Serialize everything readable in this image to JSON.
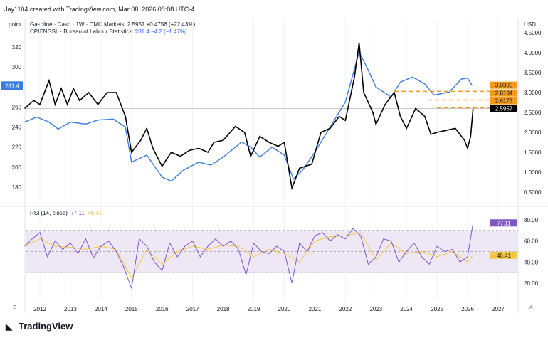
{
  "header": {
    "credit": "Jay1104 created with TradingView.com, Mar 08, 2026 08:08 UTC-4",
    "left_unit": "point",
    "right_unit": "USD",
    "series1_label": "Gasoline · Cash · 1W · CMC Markets",
    "series1_values": "2.5957  +0.4756 (+22.43%)",
    "series2_label": "CPIENGSL · Bureau of Labour Statistics",
    "series2_values": "281.4  −4.2 (−1.47%)",
    "rsi_label": "RSI (14, close)",
    "rsi_value": "77.11",
    "rsi_ma_value": "46.41"
  },
  "footer": {
    "brand": "TradingView",
    "z_button": "Z",
    "a_button": "A"
  },
  "colors": {
    "gasoline": "#000000",
    "cpi": "#3a7bdc",
    "rsi": "#7e57c2",
    "rsi_ma": "#f5c842",
    "levels": "#f59b1c",
    "rsi_band": "#ede7f6"
  },
  "chart_data": [
    {
      "type": "line",
      "title": "",
      "x_ticks": [
        "2012",
        "2013",
        "2014",
        "2015",
        "2016",
        "2017",
        "2018",
        "2019",
        "2020",
        "2021",
        "2022",
        "2023",
        "2024",
        "2025",
        "2026",
        "2027"
      ],
      "left_axis": {
        "ticks": [
          "180",
          "200",
          "220",
          "240",
          "260",
          "300",
          "320"
        ],
        "ylim": [
          170,
          330
        ]
      },
      "right_axis": {
        "ticks": [
          "0.5000",
          "1.0000",
          "1.5000",
          "2.0000",
          "2.5000",
          "3.0000",
          "3.5000",
          "4.0000",
          "4.5000"
        ],
        "ylim": [
          0.3,
          4.7
        ]
      },
      "series": [
        {
          "name": "Gasoline · Cash · 1W · CMC Markets",
          "axis": "right",
          "x": [
            2011.5,
            2011.8,
            2012.0,
            2012.3,
            2012.5,
            2012.7,
            2012.9,
            2013.1,
            2013.3,
            2013.6,
            2013.9,
            2014.2,
            2014.5,
            2014.8,
            2015.0,
            2015.3,
            2015.5,
            2015.7,
            2016.0,
            2016.3,
            2016.6,
            2016.9,
            2017.2,
            2017.5,
            2017.7,
            2018.0,
            2018.4,
            2018.7,
            2018.9,
            2019.2,
            2019.5,
            2019.8,
            2020.0,
            2020.25,
            2020.5,
            2020.9,
            2021.2,
            2021.5,
            2021.8,
            2022.0,
            2022.3,
            2022.45,
            2022.6,
            2022.9,
            2023.0,
            2023.3,
            2023.6,
            2023.8,
            2024.0,
            2024.3,
            2024.6,
            2024.8,
            2025.0,
            2025.3,
            2025.6,
            2025.9,
            2026.0,
            2026.1,
            2026.18
          ],
          "y": [
            2.6,
            2.8,
            2.7,
            3.3,
            2.7,
            3.1,
            2.7,
            3.1,
            2.8,
            3.0,
            2.7,
            3.0,
            3.0,
            2.4,
            1.5,
            1.8,
            2.1,
            1.6,
            1.15,
            1.5,
            1.4,
            1.55,
            1.6,
            1.5,
            1.75,
            1.8,
            2.15,
            2.0,
            1.4,
            1.9,
            1.75,
            1.65,
            1.75,
            0.6,
            1.1,
            1.2,
            2.0,
            2.1,
            2.4,
            2.3,
            3.4,
            4.25,
            3.0,
            2.5,
            2.2,
            2.7,
            3.0,
            2.4,
            2.1,
            2.6,
            2.4,
            1.95,
            2.0,
            2.05,
            2.1,
            1.8,
            1.6,
            1.9,
            2.5957
          ]
        },
        {
          "name": "CPIENGSL · Bureau of Labour Statistics",
          "axis": "left",
          "x": [
            2011.5,
            2011.9,
            2012.3,
            2012.6,
            2013.0,
            2013.5,
            2013.9,
            2014.4,
            2014.8,
            2015.0,
            2015.5,
            2016.0,
            2016.3,
            2016.7,
            2017.2,
            2017.6,
            2018.0,
            2018.6,
            2018.9,
            2019.2,
            2019.6,
            2020.0,
            2020.3,
            2020.6,
            2021.0,
            2021.5,
            2022.0,
            2022.45,
            2022.7,
            2023.0,
            2023.5,
            2023.8,
            2024.2,
            2024.6,
            2024.9,
            2025.4,
            2025.8,
            2026.0,
            2026.15
          ],
          "y": [
            245,
            250,
            245,
            238,
            245,
            243,
            247,
            248,
            240,
            205,
            212,
            190,
            186,
            197,
            205,
            202,
            210,
            225,
            220,
            210,
            220,
            212,
            188,
            197,
            215,
            240,
            265,
            315,
            300,
            280,
            270,
            285,
            290,
            283,
            272,
            275,
            288,
            289,
            281.4
          ]
        }
      ],
      "horizontal_levels": [
        "3.0300",
        "2.8134",
        "2.6173"
      ],
      "last_price": "2.5957",
      "cpi_last": "281.4"
    },
    {
      "type": "line",
      "title": "RSI (14, close)",
      "ylim": [
        10,
        85
      ],
      "y_ticks": [
        "20.00",
        "40.00",
        "60.00",
        "80.00"
      ],
      "bands": [
        30,
        50,
        70
      ],
      "series": [
        {
          "name": "RSI",
          "x": [
            2011.5,
            2011.75,
            2012.0,
            2012.25,
            2012.5,
            2012.75,
            2013.0,
            2013.25,
            2013.5,
            2013.75,
            2014.0,
            2014.25,
            2014.5,
            2014.75,
            2015.0,
            2015.25,
            2015.5,
            2015.75,
            2016.0,
            2016.25,
            2016.5,
            2016.75,
            2017.0,
            2017.25,
            2017.5,
            2017.75,
            2018.0,
            2018.25,
            2018.5,
            2018.75,
            2019.0,
            2019.25,
            2019.5,
            2019.75,
            2020.0,
            2020.25,
            2020.5,
            2020.75,
            2021.0,
            2021.25,
            2021.5,
            2021.75,
            2022.0,
            2022.25,
            2022.5,
            2022.75,
            2023.0,
            2023.25,
            2023.5,
            2023.75,
            2024.0,
            2024.25,
            2024.5,
            2024.75,
            2025.0,
            2025.25,
            2025.5,
            2025.75,
            2026.0,
            2026.18
          ],
          "y": [
            55,
            62,
            68,
            45,
            60,
            52,
            58,
            48,
            62,
            44,
            55,
            60,
            50,
            35,
            15,
            62,
            55,
            40,
            32,
            58,
            45,
            55,
            60,
            45,
            55,
            62,
            55,
            60,
            52,
            28,
            58,
            50,
            48,
            55,
            50,
            20,
            58,
            50,
            65,
            68,
            60,
            66,
            62,
            72,
            65,
            38,
            45,
            62,
            60,
            40,
            50,
            58,
            45,
            38,
            55,
            50,
            52,
            40,
            45,
            77.11
          ]
        },
        {
          "name": "RSI-MA",
          "x": [
            2011.5,
            2012.0,
            2012.5,
            2013.0,
            2013.5,
            2014.0,
            2014.5,
            2015.0,
            2015.5,
            2016.0,
            2016.5,
            2017.0,
            2017.5,
            2018.0,
            2018.5,
            2019.0,
            2019.5,
            2020.0,
            2020.5,
            2021.0,
            2021.5,
            2022.0,
            2022.5,
            2023.0,
            2023.5,
            2024.0,
            2024.5,
            2025.0,
            2025.5,
            2026.0,
            2026.18
          ],
          "y": [
            55,
            62,
            55,
            54,
            52,
            55,
            52,
            25,
            52,
            38,
            50,
            55,
            52,
            56,
            55,
            45,
            52,
            48,
            40,
            60,
            64,
            65,
            68,
            42,
            58,
            48,
            50,
            45,
            50,
            40,
            46.41
          ]
        }
      ]
    }
  ]
}
